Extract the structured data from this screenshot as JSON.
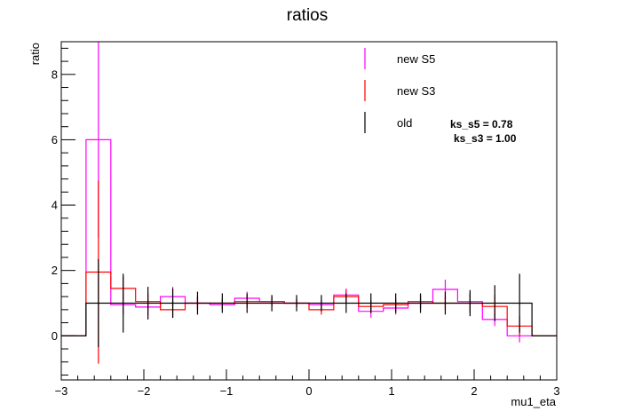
{
  "chart_data": {
    "type": "histogram",
    "title": "ratios",
    "xlabel": "mu1_eta",
    "ylabel": "ratio",
    "xlim": [
      -3,
      3
    ],
    "ylim": [
      -1.35,
      9
    ],
    "x_ticks": [
      -3,
      -2,
      -1,
      0,
      1,
      2,
      3
    ],
    "x_tick_labels": [
      "−3",
      "−2",
      "−1",
      "0",
      "1",
      "2",
      "3"
    ],
    "y_ticks": [
      0,
      2,
      4,
      6,
      8
    ],
    "y_tick_labels": [
      "0",
      "2",
      "4",
      "6",
      "8"
    ],
    "bin_edges": [
      -3.0,
      -2.7,
      -2.4,
      -2.1,
      -1.8,
      -1.5,
      -1.2,
      -0.9,
      -0.6,
      -0.3,
      0.0,
      0.3,
      0.6,
      0.9,
      1.2,
      1.5,
      1.8,
      2.1,
      2.4,
      2.7,
      3.0
    ],
    "series": [
      {
        "name": "new S5",
        "color": "#ff00ff",
        "values": [
          0,
          6.0,
          0.95,
          0.88,
          1.2,
          1.0,
          0.95,
          1.15,
          1.05,
          1.0,
          0.95,
          1.25,
          0.75,
          0.85,
          1.0,
          1.42,
          1.05,
          0.5,
          0.0,
          0
        ],
        "errors": [
          0,
          3.0,
          0.3,
          0.25,
          0.3,
          0.2,
          0.15,
          0.2,
          0.15,
          0.12,
          0.15,
          0.2,
          0.2,
          0.2,
          0.2,
          0.3,
          0.25,
          0.2,
          0.2,
          0
        ]
      },
      {
        "name": "new S3",
        "color": "#ff0000",
        "values": [
          0,
          1.95,
          1.45,
          1.05,
          0.8,
          1.0,
          1.0,
          1.05,
          1.05,
          1.0,
          0.8,
          1.2,
          0.9,
          0.95,
          1.05,
          1.0,
          1.0,
          0.9,
          0.3,
          0
        ],
        "errors": [
          0,
          2.8,
          0.35,
          0.25,
          0.25,
          0.2,
          0.15,
          0.2,
          0.15,
          0.12,
          0.15,
          0.2,
          0.2,
          0.2,
          0.2,
          0.2,
          0.3,
          0.35,
          0.3,
          0
        ]
      },
      {
        "name": "old",
        "color": "#000000",
        "values": [
          0,
          1.0,
          1.0,
          1.0,
          1.0,
          1.0,
          1.0,
          1.0,
          1.0,
          1.0,
          1.0,
          1.0,
          1.0,
          1.0,
          1.0,
          1.0,
          1.0,
          1.0,
          1.0,
          0
        ],
        "errors": [
          0,
          1.35,
          0.9,
          0.5,
          0.45,
          0.35,
          0.3,
          0.3,
          0.25,
          0.25,
          0.25,
          0.3,
          0.3,
          0.3,
          0.3,
          0.35,
          0.4,
          0.55,
          0.9,
          0
        ]
      }
    ],
    "legend": {
      "placement": "top-right",
      "entries": [
        "new S5",
        "new S3",
        "old"
      ]
    },
    "annotations": [
      "ks_s5 = 0.78",
      "ks_s3 = 1.00"
    ]
  }
}
